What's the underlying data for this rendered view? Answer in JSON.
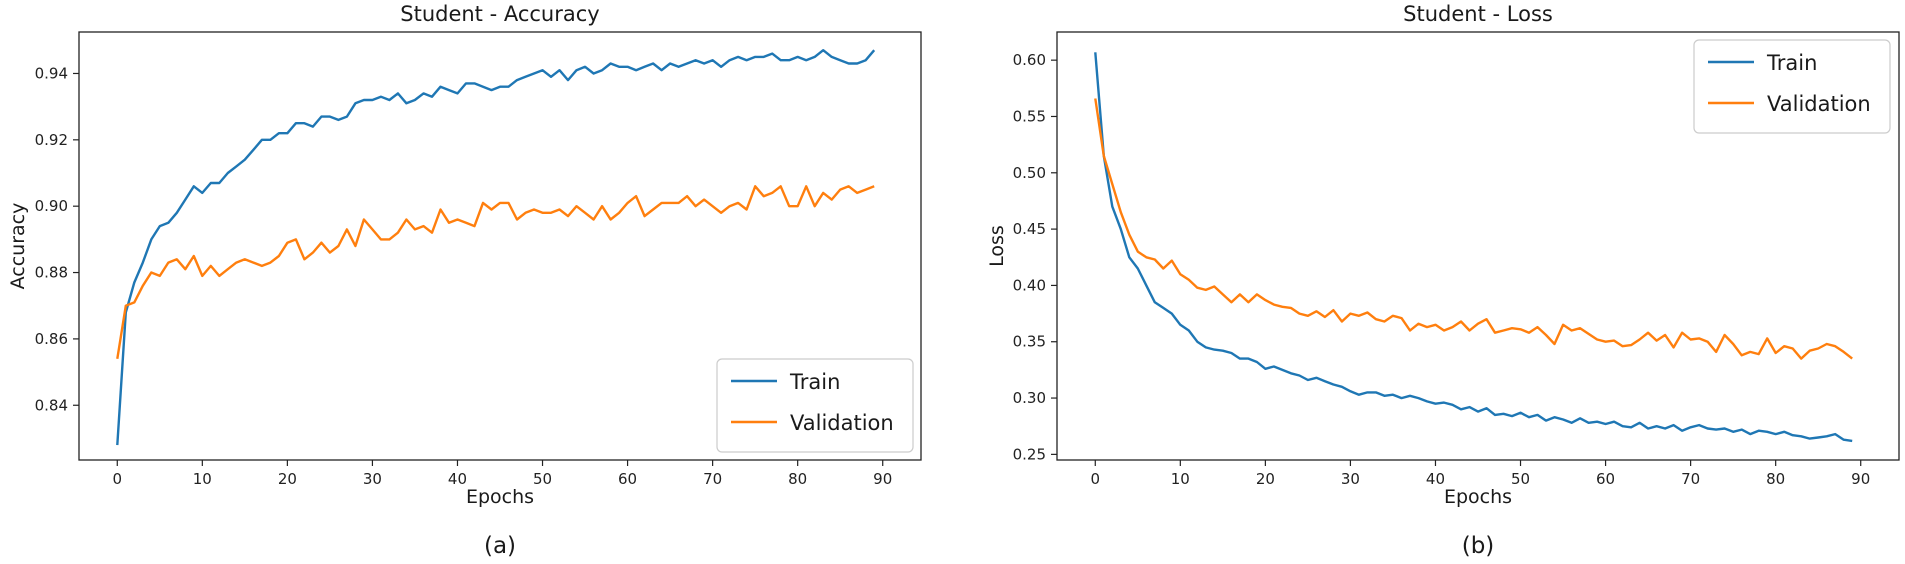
{
  "chart_data": [
    {
      "type": "line",
      "panel_label": "(a)",
      "title": "Student  -  Accuracy",
      "xlabel": "Epochs",
      "ylabel": "Accuracy",
      "xlim": [
        -4.5,
        94.5
      ],
      "ylim": [
        0.8235,
        0.9525
      ],
      "x_ticks": [
        0,
        10,
        20,
        30,
        40,
        50,
        60,
        70,
        80,
        90
      ],
      "y_ticks": [
        0.84,
        0.86,
        0.88,
        0.9,
        0.92,
        0.94
      ],
      "y_tick_labels": [
        "0.84",
        "0.86",
        "0.88",
        "0.90",
        "0.92",
        "0.94"
      ],
      "legend": {
        "position": "lower-right",
        "entries": [
          "Train",
          "Validation"
        ]
      },
      "series": [
        {
          "name": "Train",
          "color": "#1f77b4",
          "values": [
            0.828,
            0.868,
            0.877,
            0.883,
            0.89,
            0.894,
            0.895,
            0.898,
            0.902,
            0.906,
            0.904,
            0.907,
            0.907,
            0.91,
            0.912,
            0.914,
            0.917,
            0.92,
            0.92,
            0.922,
            0.922,
            0.925,
            0.925,
            0.924,
            0.927,
            0.927,
            0.926,
            0.927,
            0.931,
            0.932,
            0.932,
            0.933,
            0.932,
            0.934,
            0.931,
            0.932,
            0.934,
            0.933,
            0.936,
            0.935,
            0.934,
            0.937,
            0.937,
            0.936,
            0.935,
            0.936,
            0.936,
            0.938,
            0.939,
            0.94,
            0.941,
            0.939,
            0.941,
            0.938,
            0.941,
            0.942,
            0.94,
            0.941,
            0.943,
            0.942,
            0.942,
            0.941,
            0.942,
            0.943,
            0.941,
            0.943,
            0.942,
            0.943,
            0.944,
            0.943,
            0.944,
            0.942,
            0.944,
            0.945,
            0.944,
            0.945,
            0.945,
            0.946,
            0.944,
            0.944,
            0.945,
            0.944,
            0.945,
            0.947,
            0.945,
            0.944,
            0.943,
            0.943,
            0.944,
            0.947
          ]
        },
        {
          "name": "Validation",
          "color": "#ff7f0e",
          "values": [
            0.854,
            0.87,
            0.871,
            0.876,
            0.88,
            0.879,
            0.883,
            0.884,
            0.881,
            0.885,
            0.879,
            0.882,
            0.879,
            0.881,
            0.883,
            0.884,
            0.883,
            0.882,
            0.883,
            0.885,
            0.889,
            0.89,
            0.884,
            0.886,
            0.889,
            0.886,
            0.888,
            0.893,
            0.888,
            0.896,
            0.893,
            0.89,
            0.89,
            0.892,
            0.896,
            0.893,
            0.894,
            0.892,
            0.899,
            0.895,
            0.896,
            0.895,
            0.894,
            0.901,
            0.899,
            0.901,
            0.901,
            0.896,
            0.898,
            0.899,
            0.898,
            0.898,
            0.899,
            0.897,
            0.9,
            0.898,
            0.896,
            0.9,
            0.896,
            0.898,
            0.901,
            0.903,
            0.897,
            0.899,
            0.901,
            0.901,
            0.901,
            0.903,
            0.9,
            0.902,
            0.9,
            0.898,
            0.9,
            0.901,
            0.899,
            0.906,
            0.903,
            0.904,
            0.906,
            0.9,
            0.9,
            0.906,
            0.9,
            0.904,
            0.902,
            0.905,
            0.906,
            0.904,
            0.905,
            0.906
          ]
        }
      ]
    },
    {
      "type": "line",
      "panel_label": "(b)",
      "title": "Student  -  Loss",
      "xlabel": "Epochs",
      "ylabel": "Loss",
      "xlim": [
        -4.5,
        94.5
      ],
      "ylim": [
        0.245,
        0.625
      ],
      "x_ticks": [
        0,
        10,
        20,
        30,
        40,
        50,
        60,
        70,
        80,
        90
      ],
      "y_ticks": [
        0.25,
        0.3,
        0.35,
        0.4,
        0.45,
        0.5,
        0.55,
        0.6
      ],
      "y_tick_labels": [
        "0.25",
        "0.30",
        "0.35",
        "0.40",
        "0.45",
        "0.50",
        "0.55",
        "0.60"
      ],
      "legend": {
        "position": "top-right",
        "entries": [
          "Train",
          "Validation"
        ]
      },
      "series": [
        {
          "name": "Train",
          "color": "#1f77b4",
          "values": [
            0.607,
            0.515,
            0.47,
            0.45,
            0.425,
            0.415,
            0.4,
            0.385,
            0.38,
            0.375,
            0.365,
            0.36,
            0.35,
            0.345,
            0.343,
            0.342,
            0.34,
            0.335,
            0.335,
            0.332,
            0.326,
            0.328,
            0.325,
            0.322,
            0.32,
            0.316,
            0.318,
            0.315,
            0.312,
            0.31,
            0.306,
            0.303,
            0.305,
            0.305,
            0.302,
            0.303,
            0.3,
            0.302,
            0.3,
            0.297,
            0.295,
            0.296,
            0.294,
            0.29,
            0.292,
            0.288,
            0.291,
            0.285,
            0.286,
            0.284,
            0.287,
            0.283,
            0.285,
            0.28,
            0.283,
            0.281,
            0.278,
            0.282,
            0.278,
            0.279,
            0.277,
            0.279,
            0.275,
            0.274,
            0.278,
            0.273,
            0.275,
            0.273,
            0.276,
            0.271,
            0.274,
            0.276,
            0.273,
            0.272,
            0.273,
            0.27,
            0.272,
            0.268,
            0.271,
            0.27,
            0.268,
            0.27,
            0.267,
            0.266,
            0.264,
            0.265,
            0.266,
            0.268,
            0.263,
            0.262
          ]
        },
        {
          "name": "Validation",
          "color": "#ff7f0e",
          "values": [
            0.566,
            0.515,
            0.49,
            0.465,
            0.445,
            0.43,
            0.425,
            0.423,
            0.415,
            0.422,
            0.41,
            0.405,
            0.398,
            0.396,
            0.399,
            0.392,
            0.385,
            0.392,
            0.385,
            0.392,
            0.387,
            0.383,
            0.381,
            0.38,
            0.375,
            0.373,
            0.377,
            0.372,
            0.378,
            0.368,
            0.375,
            0.373,
            0.376,
            0.37,
            0.368,
            0.373,
            0.371,
            0.36,
            0.366,
            0.363,
            0.365,
            0.36,
            0.363,
            0.368,
            0.36,
            0.366,
            0.37,
            0.358,
            0.36,
            0.362,
            0.361,
            0.358,
            0.363,
            0.356,
            0.348,
            0.365,
            0.36,
            0.362,
            0.357,
            0.352,
            0.35,
            0.351,
            0.346,
            0.347,
            0.352,
            0.358,
            0.351,
            0.356,
            0.345,
            0.358,
            0.352,
            0.353,
            0.35,
            0.341,
            0.356,
            0.348,
            0.338,
            0.341,
            0.339,
            0.353,
            0.34,
            0.346,
            0.344,
            0.335,
            0.342,
            0.344,
            0.348,
            0.346,
            0.341,
            0.335
          ]
        }
      ]
    }
  ]
}
